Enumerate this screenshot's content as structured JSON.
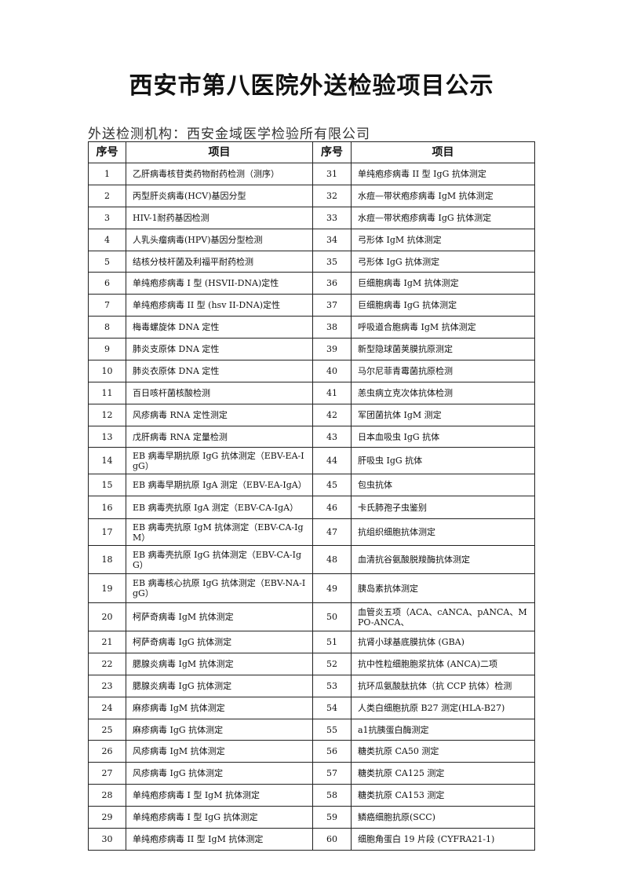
{
  "title": "西安市第八医院外送检验项目公示",
  "org_line": "外送检测机构：西安金域医学检验所有限公司",
  "table": {
    "headers": [
      "序号",
      "项目",
      "序号",
      "项目"
    ],
    "left": [
      {
        "no": "1",
        "item": "乙肝病毒核苷类药物耐药检测（测序）"
      },
      {
        "no": "2",
        "item": "丙型肝炎病毒(HCV)基因分型"
      },
      {
        "no": "3",
        "item": "HIV-1耐药基因检测"
      },
      {
        "no": "4",
        "item": "人乳头瘤病毒(HPV)基因分型检测"
      },
      {
        "no": "5",
        "item": "结核分枝杆菌及利福平耐药检测"
      },
      {
        "no": "6",
        "item": "单纯疱疹病毒 I 型 (HSVII-DNA)定性"
      },
      {
        "no": "7",
        "item": "单纯疱疹病毒 II 型 (hsv II-DNA)定性"
      },
      {
        "no": "8",
        "item": "梅毒螺旋体 DNA 定性"
      },
      {
        "no": "9",
        "item": "肺炎支原体 DNA 定性"
      },
      {
        "no": "10",
        "item": "肺炎衣原体 DNA 定性"
      },
      {
        "no": "11",
        "item": "百日咳杆菌核酸检测"
      },
      {
        "no": "12",
        "item": "风疹病毒 RNA 定性测定"
      },
      {
        "no": "13",
        "item": "戊肝病毒 RNA 定量检测"
      },
      {
        "no": "14",
        "item": "EB 病毒早期抗原 IgG 抗体测定（EBV-EA-IgG）"
      },
      {
        "no": "15",
        "item": "EB 病毒早期抗原 IgA 测定（EBV-EA-IgA）"
      },
      {
        "no": "16",
        "item": "EB 病毒壳抗原 IgA 测定（EBV-CA-IgA）"
      },
      {
        "no": "17",
        "item": "EB 病毒壳抗原 IgM 抗体测定（EBV-CA-IgM）"
      },
      {
        "no": "18",
        "item": "EB 病毒壳抗原 IgG 抗体测定（EBV-CA-IgG）"
      },
      {
        "no": "19",
        "item": "EB 病毒核心抗原 IgG 抗体测定（EBV-NA-IgG）"
      },
      {
        "no": "20",
        "item": "柯萨奇病毒 IgM 抗体测定"
      },
      {
        "no": "21",
        "item": "柯萨奇病毒 IgG 抗体测定"
      },
      {
        "no": "22",
        "item": "腮腺炎病毒 IgM 抗体测定"
      },
      {
        "no": "23",
        "item": "腮腺炎病毒 IgG 抗体测定"
      },
      {
        "no": "24",
        "item": "麻疹病毒 IgM 抗体测定"
      },
      {
        "no": "25",
        "item": "麻疹病毒 IgG 抗体测定"
      },
      {
        "no": "26",
        "item": "风疹病毒 IgM 抗体测定"
      },
      {
        "no": "27",
        "item": "风疹病毒 IgG 抗体测定"
      },
      {
        "no": "28",
        "item": "单纯疱疹病毒 I 型 IgM 抗体测定"
      },
      {
        "no": "29",
        "item": "单纯疱疹病毒 I 型 IgG 抗体测定"
      },
      {
        "no": "30",
        "item": "单纯疱疹病毒 II 型 IgM 抗体测定"
      }
    ],
    "right": [
      {
        "no": "31",
        "item": "单纯疱疹病毒 II 型 IgG 抗体测定"
      },
      {
        "no": "32",
        "item": "水痘—带状疱疹病毒 IgM 抗体测定"
      },
      {
        "no": "33",
        "item": "水痘—带状疱疹病毒 IgG 抗体测定"
      },
      {
        "no": "34",
        "item": "弓形体 IgM 抗体测定"
      },
      {
        "no": "35",
        "item": "弓形体 IgG 抗体测定"
      },
      {
        "no": "36",
        "item": "巨细胞病毒 IgM 抗体测定"
      },
      {
        "no": "37",
        "item": "巨细胞病毒 IgG 抗体测定"
      },
      {
        "no": "38",
        "item": "呼吸道合胞病毒 IgM 抗体测定"
      },
      {
        "no": "39",
        "item": "新型隐球菌荚膜抗原测定"
      },
      {
        "no": "40",
        "item": "马尔尼菲青霉菌抗原检测"
      },
      {
        "no": "41",
        "item": "恙虫病立克次体抗体检测"
      },
      {
        "no": "42",
        "item": "军团菌抗体 IgM 测定"
      },
      {
        "no": "43",
        "item": "日本血吸虫 IgG 抗体"
      },
      {
        "no": "44",
        "item": "肝吸虫 IgG 抗体"
      },
      {
        "no": "45",
        "item": "包虫抗体"
      },
      {
        "no": "46",
        "item": "卡氏肺孢子虫鉴别"
      },
      {
        "no": "47",
        "item": "抗组织细胞抗体测定"
      },
      {
        "no": "48",
        "item": "血清抗谷氨酸脱羧酶抗体测定"
      },
      {
        "no": "49",
        "item": "胰岛素抗体测定"
      },
      {
        "no": "50",
        "item": "血管炎五项（ACA、cANCA、pANCA、MPO-ANCA、"
      },
      {
        "no": "51",
        "item": "抗肾小球基底膜抗体 (GBA)"
      },
      {
        "no": "52",
        "item": "抗中性粒细胞胞浆抗体 (ANCA)二项"
      },
      {
        "no": "53",
        "item": "抗环瓜氨酸肽抗体（抗 CCP 抗体）检测"
      },
      {
        "no": "54",
        "item": "人类白细胞抗原 B27 测定(HLA-B27)"
      },
      {
        "no": "55",
        "item": "a1抗胰蛋白酶测定"
      },
      {
        "no": "56",
        "item": "糖类抗原 CA50 测定"
      },
      {
        "no": "57",
        "item": "糖类抗原 CA125 测定"
      },
      {
        "no": "58",
        "item": "糖类抗原 CA153 测定"
      },
      {
        "no": "59",
        "item": "鳞癌细胞抗原(SCC)"
      },
      {
        "no": "60",
        "item": "细胞角蛋白 19 片段 (CYFRA21-1)"
      }
    ]
  }
}
